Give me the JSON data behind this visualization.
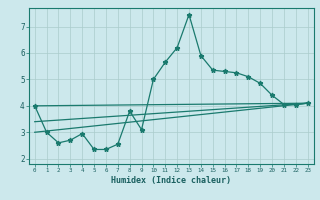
{
  "xlabel": "Humidex (Indice chaleur)",
  "background_color": "#cce8ec",
  "grid_color": "#aacccc",
  "line_color": "#1a7a6e",
  "x_ticks": [
    0,
    1,
    2,
    3,
    4,
    5,
    6,
    7,
    8,
    9,
    10,
    11,
    12,
    13,
    14,
    15,
    16,
    17,
    18,
    19,
    20,
    21,
    22,
    23
  ],
  "y_ticks": [
    2,
    3,
    4,
    5,
    6,
    7
  ],
  "ylim": [
    1.8,
    7.7
  ],
  "xlim": [
    -0.5,
    23.5
  ],
  "series1_x": [
    0,
    1,
    2,
    3,
    4,
    5,
    6,
    7,
    8,
    9,
    10,
    11,
    12,
    13,
    14,
    15,
    16,
    17,
    18,
    19,
    20,
    21,
    22,
    23
  ],
  "series1_y": [
    4.0,
    3.0,
    2.6,
    2.7,
    2.95,
    2.35,
    2.35,
    2.55,
    3.8,
    3.1,
    5.0,
    5.65,
    6.2,
    7.45,
    5.9,
    5.35,
    5.3,
    5.25,
    5.1,
    4.85,
    4.4,
    4.05,
    4.05,
    4.1
  ],
  "series2_x": [
    0,
    23
  ],
  "series2_y": [
    3.0,
    4.1
  ],
  "series3_x": [
    0,
    23
  ],
  "series3_y": [
    3.4,
    4.1
  ],
  "series4_x": [
    0,
    23
  ],
  "series4_y": [
    4.0,
    4.1
  ]
}
